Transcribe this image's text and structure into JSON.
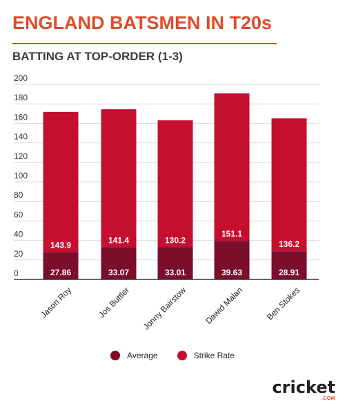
{
  "title": "ENGLAND BATSMEN IN T20s",
  "subtitle": "BATTING AT TOP-ORDER (1-3)",
  "colors": {
    "title": "#dd4c2a",
    "average": "#7a0e2b",
    "strike_rate": "#c50f2f"
  },
  "chart_data": {
    "type": "bar",
    "stacked": true,
    "categories": [
      "Jason Roy",
      "Jos Buttler",
      "Jonny Bairstow",
      "Dawid Malan",
      "Ben Stokes"
    ],
    "series": [
      {
        "name": "Average",
        "values": [
          27.86,
          33.07,
          33.01,
          39.63,
          28.91
        ]
      },
      {
        "name": "Strike Rate",
        "values": [
          143.9,
          141.4,
          130.2,
          151.1,
          136.2
        ]
      }
    ],
    "ylim": [
      0,
      200
    ],
    "yticks": [
      0,
      20,
      40,
      60,
      80,
      100,
      120,
      140,
      160,
      180,
      200
    ],
    "grid": true,
    "legend": "bottom"
  },
  "legend": {
    "average_label": "Average",
    "strike_rate_label": "Strike Rate"
  },
  "logo": {
    "word_main": "cricket",
    "word_sub": ".COM"
  }
}
